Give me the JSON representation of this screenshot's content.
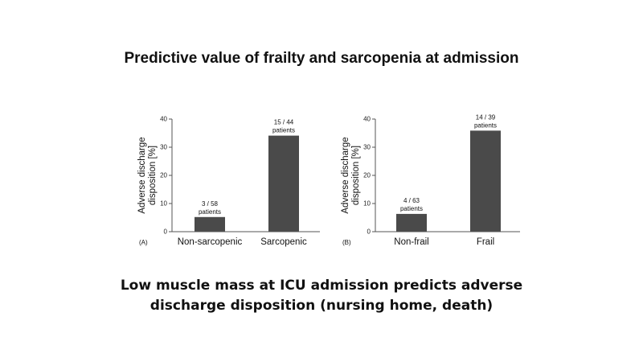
{
  "slide": {
    "title": "Predictive value of frailty and sarcopenia at admission",
    "caption_line1": "Low muscle mass at ICU admission predicts adverse",
    "caption_line2": "discharge disposition (nursing home, death)"
  },
  "colors": {
    "bar": "#4a4a4a",
    "axis": "#555555",
    "text": "#111111"
  },
  "chart_data": [
    {
      "type": "bar",
      "panel_label": "(A)",
      "title": "",
      "xlabel": "",
      "ylabel_line1": "Adverse discharge",
      "ylabel_line2": "disposition [%]",
      "ylim": [
        0,
        40
      ],
      "yticks": [
        "0",
        "10",
        "20",
        "30",
        "40"
      ],
      "categories": [
        "Non-sarcopenic",
        "Sarcopenic"
      ],
      "values": [
        5.2,
        34.1
      ],
      "annotations": [
        {
          "count": "3 / 58",
          "unit": "patients"
        },
        {
          "count": "15 / 44",
          "unit": "patients"
        }
      ]
    },
    {
      "type": "bar",
      "panel_label": "(B)",
      "title": "",
      "xlabel": "",
      "ylabel_line1": "Adverse discharge",
      "ylabel_line2": "disposition [%]",
      "ylim": [
        0,
        40
      ],
      "yticks": [
        "0",
        "10",
        "20",
        "30",
        "40"
      ],
      "categories": [
        "Non-frail",
        "Frail"
      ],
      "values": [
        6.3,
        35.9
      ],
      "annotations": [
        {
          "count": "4 / 63",
          "unit": "patients"
        },
        {
          "count": "14 / 39",
          "unit": "patients"
        }
      ]
    }
  ]
}
